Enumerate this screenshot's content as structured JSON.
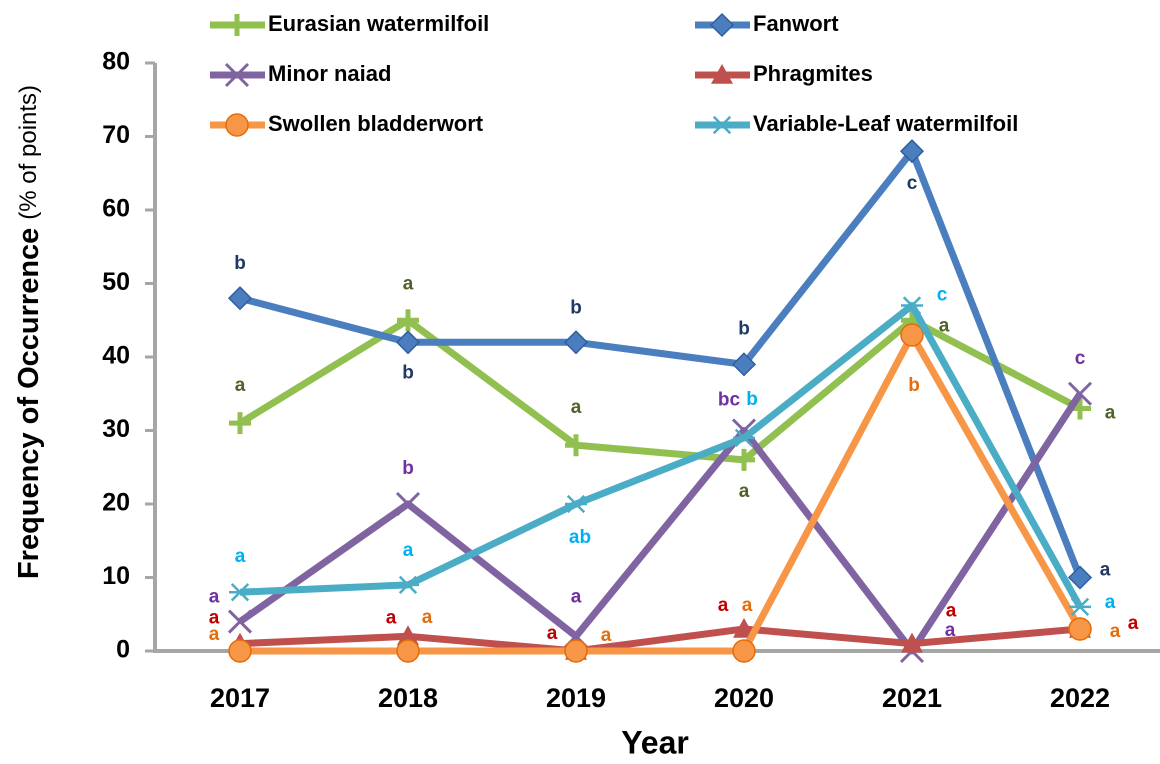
{
  "chart_data": {
    "type": "line",
    "xlabel": "Year",
    "ylabel": "Frequency of Occurrence",
    "ylabel_units": "(% of points)",
    "categories": [
      "2017",
      "2018",
      "2019",
      "2020",
      "2021",
      "2022"
    ],
    "ylim": [
      0,
      80
    ],
    "yticks": [
      0,
      10,
      20,
      30,
      40,
      50,
      60,
      70,
      80
    ],
    "grid": false,
    "legend": "top",
    "series": [
      {
        "name": "Eurasian watermilfoil",
        "color": "#92c050",
        "marker": "plus",
        "label_color": "#4f6228",
        "values": [
          31,
          45,
          28,
          26,
          45,
          33
        ],
        "letters": [
          "a",
          "a",
          "a",
          "a",
          "a",
          "a"
        ]
      },
      {
        "name": "Fanwort",
        "color": "#4a7ebf",
        "marker": "diamond",
        "label_color": "#1f3864",
        "values": [
          48,
          42,
          42,
          39,
          68,
          10
        ],
        "letters": [
          "b",
          "b",
          "b",
          "b",
          "c",
          "a"
        ]
      },
      {
        "name": "Minor naiad",
        "color": "#8064a2",
        "marker": "x",
        "label_color": "#7030a0",
        "values": [
          4,
          20,
          2,
          30,
          0,
          35
        ],
        "letters": [
          "a",
          "b",
          "a",
          "bc",
          "a",
          "c"
        ]
      },
      {
        "name": "Phragmites",
        "color": "#c0504d",
        "marker": "triangle",
        "label_color": "#c00000",
        "values": [
          1,
          2,
          0,
          3,
          1,
          3
        ],
        "letters": [
          "a",
          "a",
          "a",
          "a",
          "a",
          "a"
        ]
      },
      {
        "name": "Swollen bladderwort",
        "color": "#f79646",
        "marker": "circle",
        "label_color": "#e46c0a",
        "values": [
          0,
          0,
          0,
          0,
          43,
          3
        ],
        "letters": [
          "a",
          "a",
          "a",
          "a",
          "b",
          "a"
        ]
      },
      {
        "name": "Variable-Leaf watermilfoil",
        "color": "#4bacc6",
        "marker": "star",
        "label_color": "#00b0f0",
        "values": [
          8,
          9,
          20,
          29,
          47,
          6
        ],
        "letters": [
          "a",
          "a",
          "ab",
          "b",
          "c",
          "a"
        ]
      }
    ]
  }
}
